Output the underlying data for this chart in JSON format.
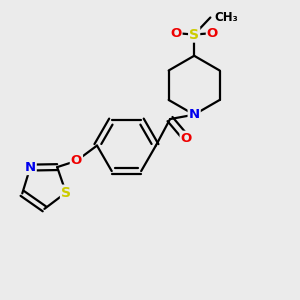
{
  "bg_color": "#ebebeb",
  "atom_colors": {
    "C": "#000000",
    "N": "#0000ee",
    "O": "#ee0000",
    "S_thiazole": "#cccc00",
    "S_sulfonyl": "#cccc00"
  },
  "bond_color": "#000000",
  "bond_width": 1.6,
  "figsize": [
    3.0,
    3.0
  ],
  "dpi": 100,
  "xlim": [
    0,
    10
  ],
  "ylim": [
    0,
    10
  ]
}
